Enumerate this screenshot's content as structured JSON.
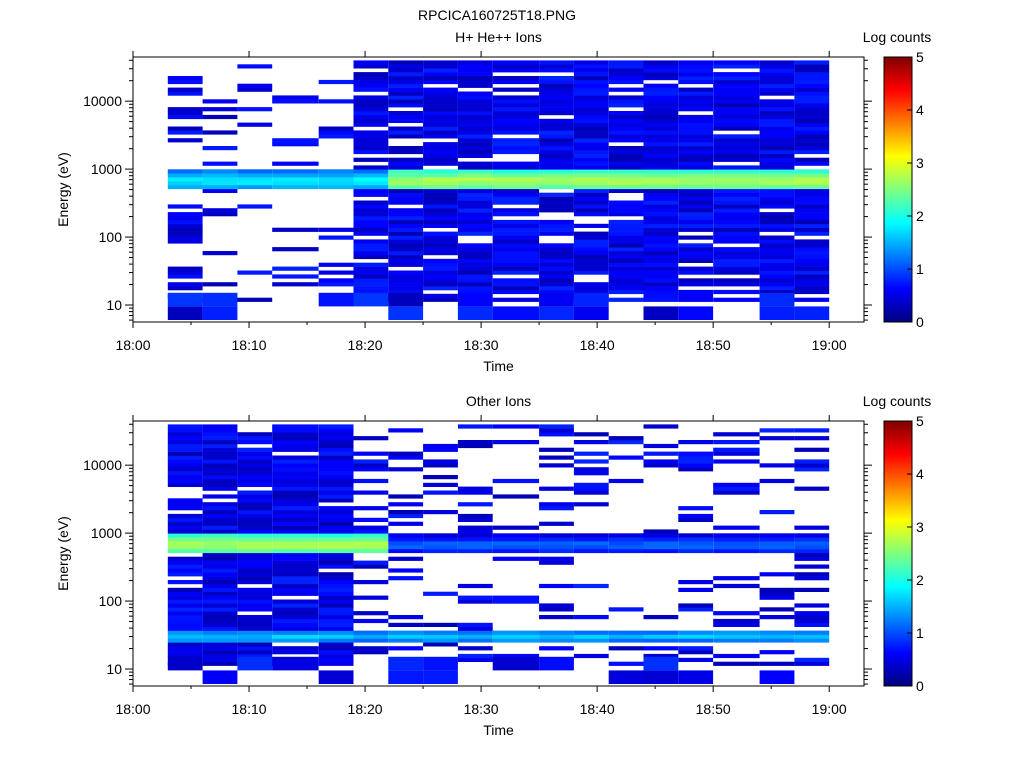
{
  "figure_title": "RPCICA160725T18.PNG",
  "colors": {
    "colormap": [
      "#00007f",
      "#0000ff",
      "#007fff",
      "#00ffff",
      "#7fff7f",
      "#ffff00",
      "#ff7f00",
      "#ff0000",
      "#7f0000"
    ]
  },
  "chart_data": [
    {
      "type": "heatmap",
      "title": "H+ He++ Ions",
      "xlabel": "Time",
      "ylabel": "Energy (eV)",
      "xlim": [
        "18:00",
        "19:03"
      ],
      "ylim_log10": [
        0.75,
        4.65
      ],
      "yscale": "log",
      "xticks": [
        "18:00",
        "18:10",
        "18:20",
        "18:30",
        "18:40",
        "18:50",
        "19:00"
      ],
      "yticks": [
        "10",
        "100",
        "1000",
        "10000"
      ],
      "colorbar": {
        "label": "Log counts",
        "range": [
          0,
          5
        ],
        "ticks": [
          "0",
          "1",
          "2",
          "3",
          "4",
          "5"
        ]
      },
      "grid": false,
      "time_bins": [
        "18:03",
        "18:06",
        "18:09",
        "18:12",
        "18:16",
        "18:19",
        "18:22",
        "18:25",
        "18:28",
        "18:31",
        "18:35",
        "18:38",
        "18:41",
        "18:44",
        "18:47",
        "18:50",
        "18:54",
        "18:57"
      ],
      "time_bin_end": "19:00",
      "band": {
        "log_energy_center": 2.8,
        "peak_log_counts_early": 1.9,
        "peak_log_counts_late": 2.8,
        "change_after_bin": 5
      },
      "fill_fraction": [
        0.25,
        0.25,
        0.15,
        0.15,
        0.22,
        0.9,
        0.9,
        0.9,
        0.9,
        0.9,
        0.9,
        0.9,
        0.9,
        0.9,
        0.9,
        0.9,
        0.9,
        0.9
      ]
    },
    {
      "type": "heatmap",
      "title": "Other Ions",
      "xlabel": "Time",
      "ylabel": "Energy (eV)",
      "xlim": [
        "18:00",
        "19:03"
      ],
      "ylim_log10": [
        0.75,
        4.65
      ],
      "yscale": "log",
      "xticks": [
        "18:00",
        "18:10",
        "18:20",
        "18:30",
        "18:40",
        "18:50",
        "19:00"
      ],
      "yticks": [
        "10",
        "100",
        "1000",
        "10000"
      ],
      "colorbar": {
        "label": "Log counts",
        "range": [
          0,
          5
        ],
        "ticks": [
          "0",
          "1",
          "2",
          "3",
          "4",
          "5"
        ]
      },
      "grid": false,
      "time_bins": [
        "18:03",
        "18:06",
        "18:09",
        "18:12",
        "18:16",
        "18:19",
        "18:22",
        "18:25",
        "18:28",
        "18:31",
        "18:35",
        "18:38",
        "18:41",
        "18:44",
        "18:47",
        "18:50",
        "18:54",
        "18:57"
      ],
      "time_bin_end": "19:00",
      "band": {
        "log_energy_center": 2.8,
        "peak_log_counts_early": 2.8,
        "peak_log_counts_late": 1.2,
        "change_after_bin": 5
      },
      "band2": {
        "log_energy_center": 1.45,
        "peak_log_counts": 1.6
      },
      "fill_fraction": [
        0.9,
        0.9,
        0.9,
        0.9,
        0.9,
        0.25,
        0.25,
        0.25,
        0.25,
        0.25,
        0.25,
        0.25,
        0.25,
        0.25,
        0.25,
        0.25,
        0.25,
        0.25
      ]
    }
  ]
}
